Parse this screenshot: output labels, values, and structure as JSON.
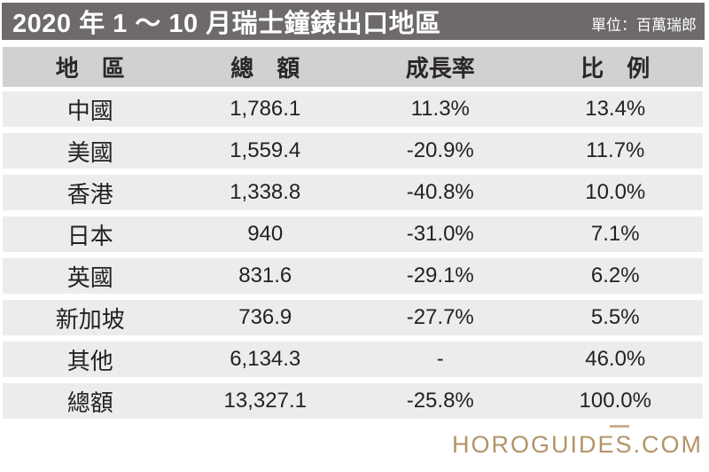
{
  "titlebar": {
    "title": "2020 年 1 ～ 10 月瑞士鐘錶出口地區",
    "unit": "單位：百萬瑞郎"
  },
  "table": {
    "columns": {
      "region": "地　區",
      "total": "總　額",
      "growth": "成長率",
      "share": "比　例"
    },
    "rows": [
      {
        "region": "中國",
        "total": "1,786.1",
        "growth": "11.3%",
        "share": "13.4%"
      },
      {
        "region": "美國",
        "total": "1,559.4",
        "growth": "-20.9%",
        "share": "11.7%"
      },
      {
        "region": "香港",
        "total": "1,338.8",
        "growth": "-40.8%",
        "share": "10.0%"
      },
      {
        "region": "日本",
        "total": "940",
        "growth": "-31.0%",
        "share": "7.1%"
      },
      {
        "region": "英國",
        "total": "831.6",
        "growth": "-29.1%",
        "share": "6.2%"
      },
      {
        "region": "新加坡",
        "total": "736.9",
        "growth": "-27.7%",
        "share": "5.5%"
      },
      {
        "region": "其他",
        "total": "6,134.3",
        "growth": "-",
        "share": "46.0%"
      },
      {
        "region": "總額",
        "total": "13,327.1",
        "growth": "-25.8%",
        "share": "100.0%"
      }
    ]
  },
  "footer": {
    "brand": "HOROGUIDES.COM"
  },
  "colors": {
    "titlebar_bg": "#6e6a6c",
    "titlebar_text": "#ffffff",
    "header_row_bg": "#d2d0d0",
    "data_row_bg": "#edecec",
    "text": "#242122",
    "brand": "#b29467"
  }
}
